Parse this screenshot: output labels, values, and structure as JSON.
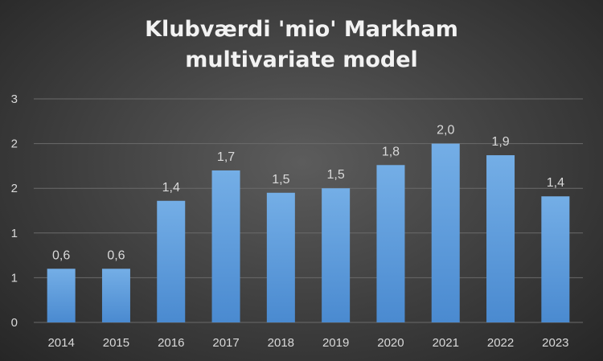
{
  "chart_data": {
    "type": "bar",
    "title_lines": [
      "Klubværdi 'mio' Markham",
      "multivariate model"
    ],
    "categories": [
      "2014",
      "2015",
      "2016",
      "2017",
      "2018",
      "2019",
      "2020",
      "2021",
      "2022",
      "2023"
    ],
    "values": [
      0.6,
      0.6,
      1.36,
      1.7,
      1.45,
      1.5,
      1.76,
      2.0,
      1.87,
      1.41
    ],
    "data_labels": [
      "0,6",
      "0,6",
      "1,4",
      "1,7",
      "1,5",
      "1,5",
      "1,8",
      "2,0",
      "1,9",
      "1,4"
    ],
    "y_ticks": [
      0,
      0.5,
      1,
      1.5,
      2,
      2.5
    ],
    "y_tick_labels": [
      "0",
      "1",
      "1",
      "2",
      "2",
      "3"
    ],
    "ylim": [
      0,
      2.5
    ],
    "xlabel": "",
    "ylabel": "",
    "grid": true,
    "legend": "none",
    "colors": {
      "bar_top": "#74aee6",
      "bar_bottom": "#4a8ad0",
      "grid": "#6a6a6a",
      "text": "#d9d9d9"
    }
  }
}
